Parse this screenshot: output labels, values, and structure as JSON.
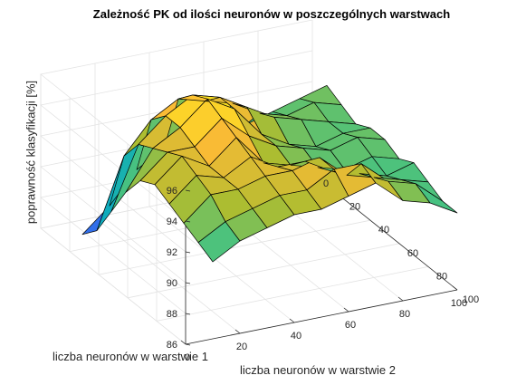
{
  "chart_data": {
    "type": "surface",
    "title": "Zależność PK od ilości neuronów w poszczególnych warstwach",
    "xlabel": "liczba neuronów w warstwie 1",
    "ylabel": "liczba neuronów w warstwie 2",
    "zlabel": "poprawność klasyfikacji [%]",
    "xlim": [
      0,
      100
    ],
    "ylim": [
      0,
      100
    ],
    "zlim": [
      86,
      96
    ],
    "x_ticks": [
      "0",
      "20",
      "40",
      "60",
      "80",
      "100"
    ],
    "y_ticks": [
      "0",
      "20",
      "40",
      "60",
      "80",
      "100"
    ],
    "z_ticks": [
      "86",
      "88",
      "90",
      "92",
      "94",
      "96"
    ],
    "grid": true,
    "colormap": "parula",
    "x": [
      10,
      20,
      30,
      40,
      50,
      60,
      70,
      80,
      90,
      100
    ],
    "y": [
      10,
      20,
      30,
      40,
      50,
      60,
      70,
      80,
      90,
      100
    ],
    "z": [
      [
        86.0,
        87.0,
        89.0,
        91.0,
        92.5,
        93.0,
        92.5,
        92.0,
        91.5,
        91.0
      ],
      [
        87.5,
        91.5,
        93.0,
        93.5,
        94.0,
        94.5,
        94.0,
        93.5,
        92.5,
        92.0
      ],
      [
        89.5,
        93.5,
        94.5,
        94.5,
        94.0,
        93.5,
        93.5,
        93.5,
        93.0,
        92.5
      ],
      [
        90.5,
        94.5,
        95.5,
        96.0,
        95.5,
        95.0,
        94.5,
        94.0,
        93.5,
        93.0
      ],
      [
        91.0,
        94.0,
        95.0,
        95.0,
        94.0,
        93.0,
        93.5,
        94.0,
        93.5,
        93.0
      ],
      [
        91.5,
        93.5,
        94.0,
        93.0,
        93.0,
        92.5,
        93.5,
        94.5,
        94.5,
        93.5
      ],
      [
        91.0,
        92.5,
        93.0,
        92.0,
        92.5,
        92.0,
        92.5,
        93.0,
        94.5,
        94.0
      ],
      [
        91.5,
        92.0,
        92.5,
        91.5,
        92.0,
        91.5,
        92.0,
        92.5,
        93.0,
        92.5
      ],
      [
        92.0,
        92.5,
        92.0,
        92.0,
        92.5,
        92.0,
        91.5,
        92.0,
        92.5,
        92.0
      ],
      [
        92.5,
        92.0,
        91.5,
        92.0,
        92.0,
        91.5,
        92.0,
        91.5,
        91.0,
        91.0
      ]
    ]
  }
}
